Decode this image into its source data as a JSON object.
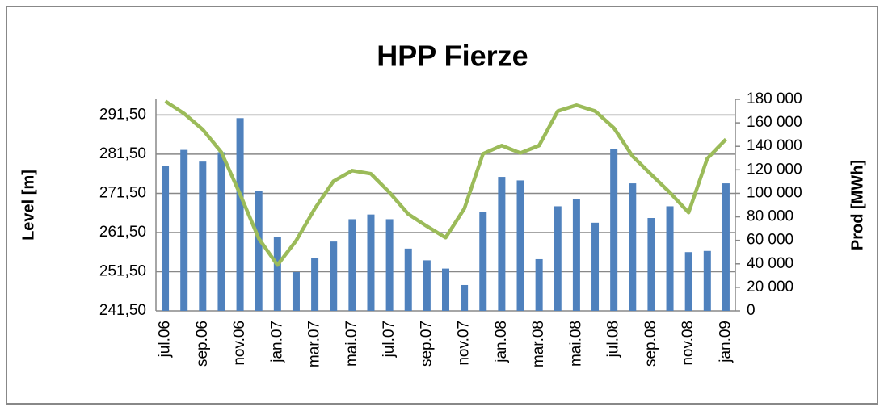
{
  "chart_data": {
    "type": "bar-line",
    "title": "HPP Fierze",
    "ylabel": "Level [m]",
    "y2label": "Prod [MWh]",
    "categories": [
      "jul.06",
      null,
      "sep.06",
      null,
      "nov.06",
      null,
      "jan.07",
      null,
      "mar.07",
      null,
      "mai.07",
      null,
      "jul.07",
      null,
      "sep.07",
      null,
      "nov.07",
      null,
      "jan.08",
      null,
      "mar.08",
      null,
      "mai.08",
      null,
      "jul.08",
      null,
      "sep.08",
      null,
      "nov.08",
      null,
      "jan.09"
    ],
    "ylim": [
      241.5,
      295.5
    ],
    "yticks": [
      {
        "value": 241.5,
        "label": "241,50"
      },
      {
        "value": 251.5,
        "label": "251,50"
      },
      {
        "value": 261.5,
        "label": "261,50"
      },
      {
        "value": 271.5,
        "label": "271,50"
      },
      {
        "value": 281.5,
        "label": "281,50"
      },
      {
        "value": 291.5,
        "label": "291,50"
      }
    ],
    "y2lim": [
      0,
      180000
    ],
    "y2ticks": [
      0,
      {
        "value": 20000,
        "label": "20 000"
      },
      {
        "value": 40000,
        "label": "40 000"
      },
      {
        "value": 60000,
        "label": "60 000"
      },
      {
        "value": 80000,
        "label": "80 000"
      },
      {
        "value": 100000,
        "label": "100 000"
      },
      {
        "value": 120000,
        "label": "120 000"
      },
      {
        "value": 140000,
        "label": "140 000"
      },
      {
        "value": 160000,
        "label": "160 000"
      },
      {
        "value": 180000,
        "label": "180 000"
      }
    ],
    "grid": true,
    "series": [
      {
        "type": "bar",
        "axis": "y2",
        "color": "#4f81bd",
        "values": [
          123000,
          137000,
          127000,
          135000,
          164000,
          102000,
          63000,
          33000,
          45000,
          59000,
          78000,
          82000,
          78000,
          53000,
          43000,
          36000,
          22000,
          84000,
          114000,
          111000,
          44000,
          89000,
          95500,
          75000,
          138000,
          108500,
          79000,
          89000,
          50000,
          51000,
          108500
        ]
      },
      {
        "type": "line",
        "color": "#9bbb59",
        "values": [
          295.0,
          291.9,
          287.8,
          282.0,
          271.3,
          260.0,
          253.2,
          259.4,
          267.6,
          274.6,
          277.3,
          276.5,
          271.7,
          266.2,
          263.1,
          260.2,
          267.6,
          281.6,
          283.7,
          281.8,
          283.7,
          292.5,
          294.0,
          292.5,
          288.2,
          281.0,
          276.3,
          271.7,
          266.6,
          280.4,
          285.3
        ]
      }
    ]
  }
}
